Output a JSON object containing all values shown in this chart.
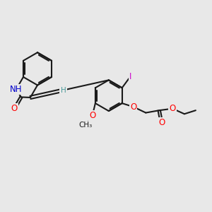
{
  "bg_color": "#e8e8e8",
  "bond_color": "#1a1a1a",
  "bond_width": 1.5,
  "figsize": [
    3.0,
    3.0
  ],
  "dpi": 100,
  "font_size_atom": 8.5,
  "font_size_H": 7.5,
  "colors": {
    "O": "#ff0000",
    "N": "#0000cc",
    "I": "#cc00cc",
    "H": "#4a9a9a",
    "C": "#1a1a1a"
  }
}
